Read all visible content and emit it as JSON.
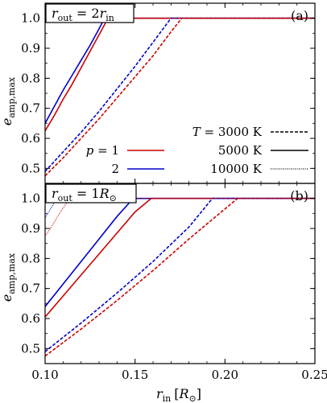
{
  "chart_data": [
    {
      "type": "line",
      "panel_tag": "(a)",
      "box_label": "r_out = 2r_in",
      "box_label_parts": {
        "main": "r",
        "sub": "out",
        "eq": " = 2",
        "main2": "r",
        "sub2": "in"
      },
      "xlim": [
        0.1,
        0.25
      ],
      "ylim": [
        0.45,
        1.05
      ],
      "yticks": [
        "0.5",
        "0.6",
        "0.7",
        "0.8",
        "0.9",
        "1.0"
      ],
      "ylabel": "e_amp,max",
      "legend_p": [
        {
          "label": "p = 1",
          "color": "#cc0000"
        },
        {
          "label": "2",
          "color": "#0000cc"
        }
      ],
      "legend_T": [
        {
          "label": "T = 3000 K",
          "dash": "dashed"
        },
        {
          "label": "5000 K",
          "dash": "solid"
        },
        {
          "label": "10000 K",
          "dash": "dotted"
        }
      ],
      "series": [
        {
          "p": "2",
          "T": "5000 K",
          "color": "#0000cc",
          "dash": "solid",
          "x": [
            0.1,
            0.105,
            0.11,
            0.115,
            0.12,
            0.125,
            0.13,
            0.133,
            0.25
          ],
          "y": [
            0.65,
            0.705,
            0.76,
            0.81,
            0.86,
            0.91,
            0.965,
            1.0,
            1.0
          ]
        },
        {
          "p": "1",
          "T": "5000 K",
          "color": "#cc0000",
          "dash": "solid",
          "x": [
            0.1,
            0.105,
            0.11,
            0.115,
            0.12,
            0.125,
            0.13,
            0.135,
            0.25
          ],
          "y": [
            0.625,
            0.675,
            0.73,
            0.78,
            0.835,
            0.89,
            0.945,
            1.0,
            1.0
          ]
        },
        {
          "p": "2",
          "T": "3000 K",
          "color": "#0000cc",
          "dash": "dashed",
          "x": [
            0.1,
            0.11,
            0.12,
            0.13,
            0.14,
            0.15,
            0.16,
            0.17,
            0.25
          ],
          "y": [
            0.49,
            0.555,
            0.62,
            0.69,
            0.765,
            0.84,
            0.92,
            1.0,
            1.0
          ]
        },
        {
          "p": "1",
          "T": "3000 K",
          "color": "#cc0000",
          "dash": "dashed",
          "x": [
            0.1,
            0.11,
            0.12,
            0.13,
            0.14,
            0.15,
            0.16,
            0.17,
            0.176,
            0.25
          ],
          "y": [
            0.475,
            0.535,
            0.6,
            0.665,
            0.735,
            0.805,
            0.875,
            0.955,
            1.0,
            1.0
          ]
        },
        {
          "p": "2",
          "T": "10000 K",
          "color": "#0000cc",
          "dash": "dotted",
          "x": [
            0.1,
            0.25
          ],
          "y": [
            1.0,
            1.0
          ]
        },
        {
          "p": "1",
          "T": "10000 K",
          "color": "#cc0000",
          "dash": "dotted",
          "x": [
            0.1,
            0.25
          ],
          "y": [
            1.0,
            1.0
          ]
        }
      ]
    },
    {
      "type": "line",
      "panel_tag": "(b)",
      "box_label": "r_out = 1R_sun",
      "box_label_parts": {
        "main": "r",
        "sub": "out",
        "eq": " = 1",
        "main2": "R",
        "sub2": "⊙"
      },
      "xlim": [
        0.1,
        0.25
      ],
      "ylim": [
        0.45,
        1.05
      ],
      "xticks": [
        "0.10",
        "0.15",
        "0.20",
        "0.25"
      ],
      "yticks": [
        "0.5",
        "0.6",
        "0.7",
        "0.8",
        "0.9",
        "1.0"
      ],
      "xlabel": "r_in [R_sun]",
      "ylabel": "e_amp,max",
      "series": [
        {
          "p": "2",
          "T": "5000 K",
          "color": "#0000cc",
          "dash": "solid",
          "x": [
            0.1,
            0.11,
            0.12,
            0.13,
            0.14,
            0.149,
            0.25
          ],
          "y": [
            0.64,
            0.715,
            0.79,
            0.865,
            0.94,
            1.0,
            1.0
          ]
        },
        {
          "p": "1",
          "T": "5000 K",
          "color": "#cc0000",
          "dash": "solid",
          "x": [
            0.1,
            0.11,
            0.12,
            0.13,
            0.14,
            0.15,
            0.159,
            0.25
          ],
          "y": [
            0.605,
            0.675,
            0.745,
            0.815,
            0.885,
            0.955,
            1.0,
            1.0
          ]
        },
        {
          "p": "2",
          "T": "3000 K",
          "color": "#0000cc",
          "dash": "dashed",
          "x": [
            0.1,
            0.12,
            0.14,
            0.16,
            0.18,
            0.193,
            0.25
          ],
          "y": [
            0.49,
            0.585,
            0.685,
            0.79,
            0.905,
            1.0,
            1.0
          ]
        },
        {
          "p": "1",
          "T": "3000 K",
          "color": "#cc0000",
          "dash": "dashed",
          "x": [
            0.1,
            0.12,
            0.14,
            0.16,
            0.18,
            0.2,
            0.207,
            0.25
          ],
          "y": [
            0.475,
            0.565,
            0.66,
            0.76,
            0.865,
            0.965,
            1.0,
            1.0
          ]
        },
        {
          "p": "2",
          "T": "10000 K",
          "color": "#0000cc",
          "dash": "dotted",
          "x": [
            0.1,
            0.102,
            0.104,
            0.106,
            0.108,
            0.25
          ],
          "y": [
            0.935,
            0.955,
            0.975,
            0.995,
            1.0,
            1.0
          ]
        },
        {
          "p": "1",
          "T": "10000 K",
          "color": "#cc0000",
          "dash": "dotted",
          "x": [
            0.1,
            0.103,
            0.106,
            0.109,
            0.112,
            0.114,
            0.25
          ],
          "y": [
            0.875,
            0.9,
            0.93,
            0.96,
            0.985,
            1.0,
            1.0
          ]
        }
      ]
    }
  ],
  "labels": {
    "ylabel_main": "e",
    "ylabel_sub": "amp,max",
    "xlabel_main": "r",
    "xlabel_sub": "in",
    "xlabel_unit_open": "[",
    "xlabel_unit_R": "R",
    "xlabel_unit_sun": "⊙",
    "xlabel_unit_close": "]"
  }
}
